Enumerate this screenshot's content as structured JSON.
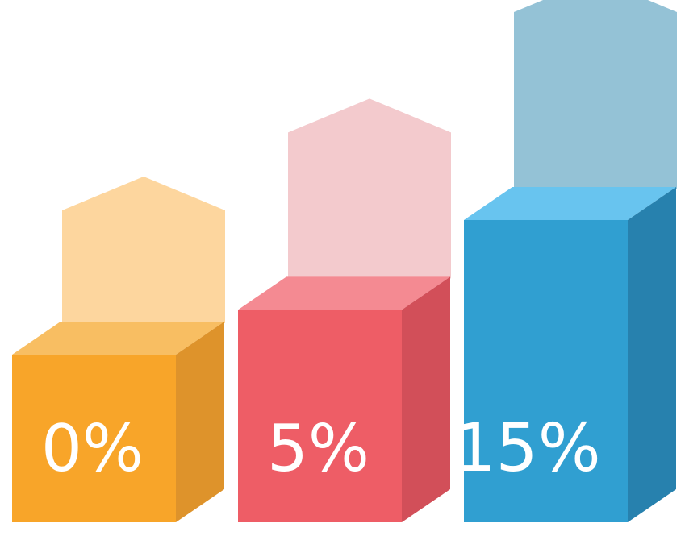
{
  "chart_data": {
    "type": "bar",
    "categories": [
      "0%",
      "5%",
      "15%"
    ],
    "values": [
      0,
      5,
      15
    ],
    "title": "",
    "xlabel": "",
    "ylabel": ""
  },
  "bars": [
    {
      "label": "0%",
      "value": 0,
      "colors": {
        "front": "#F8A529",
        "top": "#F8BE62",
        "side": "#DE932B",
        "arrow": "#FDD69E"
      }
    },
    {
      "label": "5%",
      "value": 5,
      "colors": {
        "front": "#EE5D66",
        "top": "#F48A92",
        "side": "#D24F59",
        "arrow": "#F3CACD"
      }
    },
    {
      "label": "15%",
      "value": 15,
      "colors": {
        "front": "#309FD1",
        "top": "#68C4EF",
        "side": "#2781AE",
        "arrow": "#94C2D6"
      }
    }
  ]
}
